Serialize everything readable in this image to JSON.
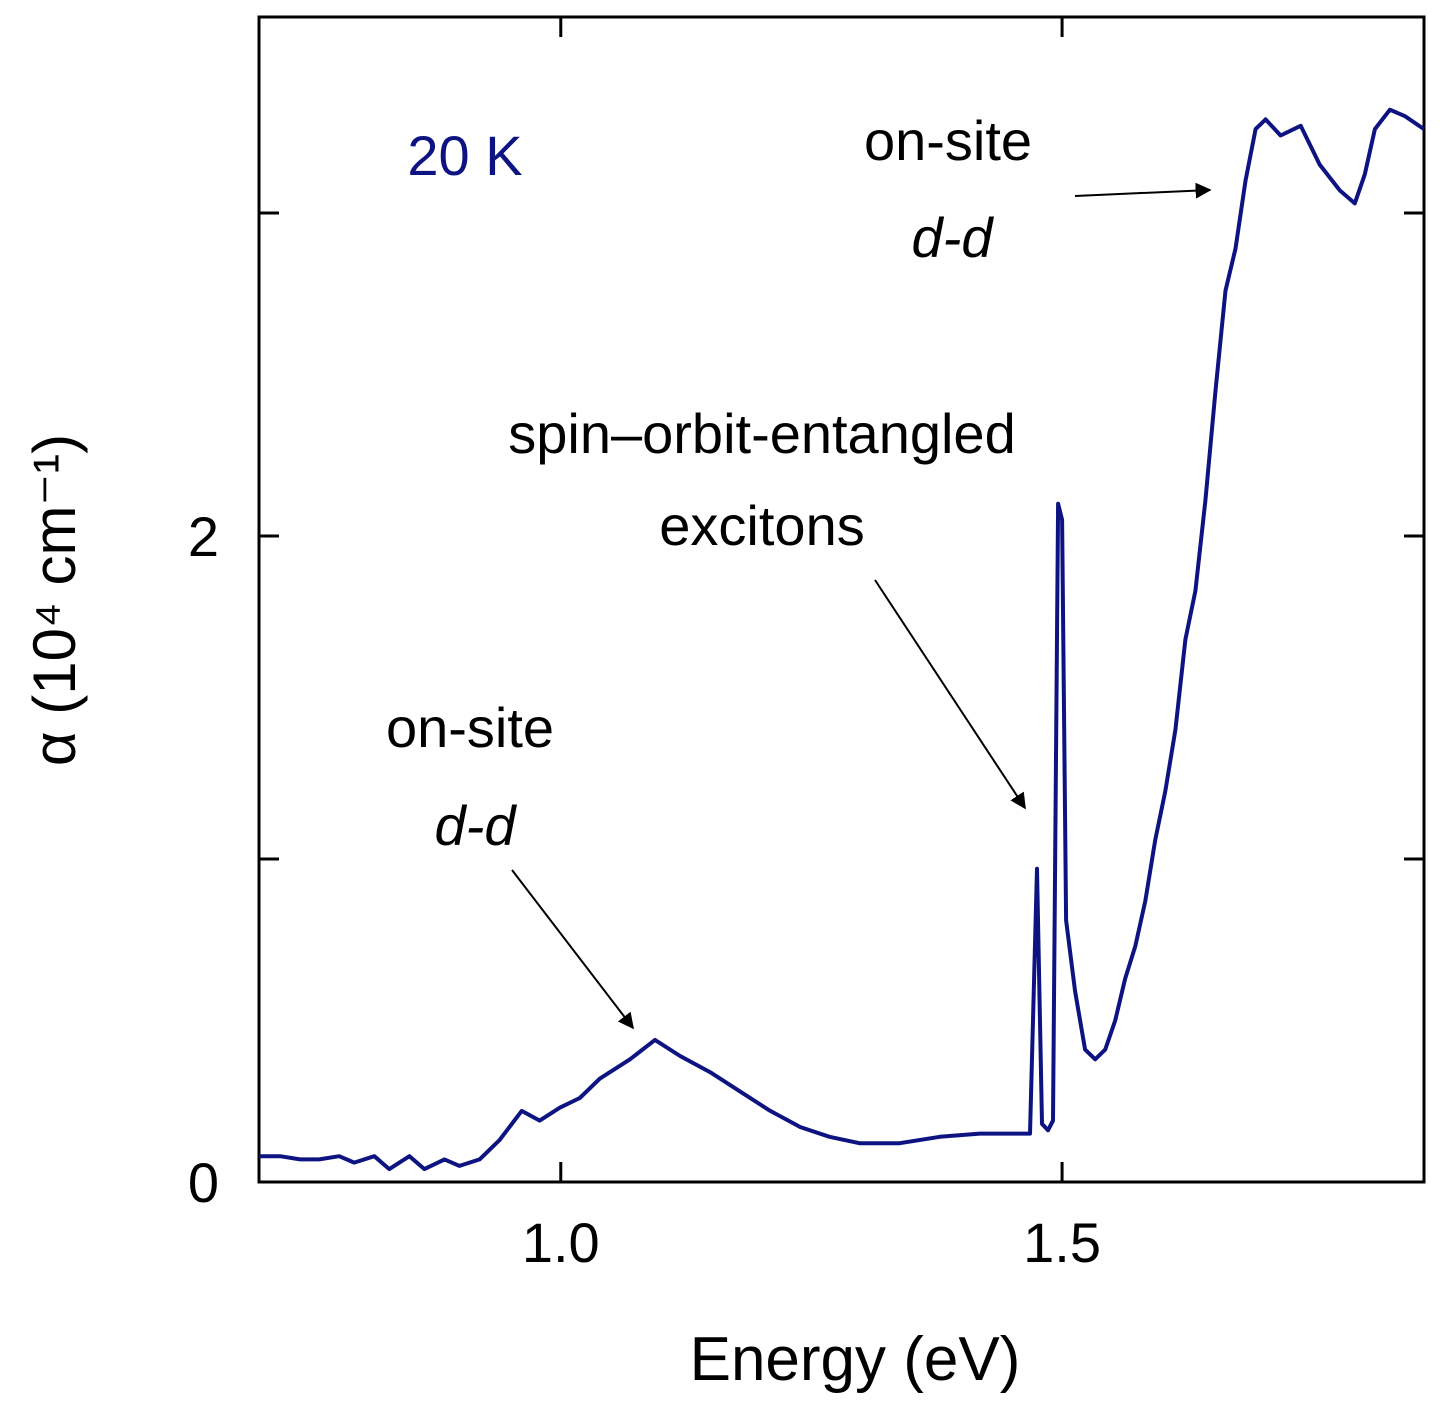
{
  "chart_data": {
    "type": "line",
    "xlabel": "Energy (eV)",
    "ylabel": "α (10⁴ cm⁻¹)",
    "xlim": [
      0.699,
      1.861
    ],
    "ylim": [
      0,
      3.607
    ],
    "xticks": [
      {
        "value": 1.0,
        "label": "1.0"
      },
      {
        "value": 1.5,
        "label": "1.5"
      }
    ],
    "yticks": [
      0,
      2
    ],
    "yminorticks": [
      1,
      3
    ],
    "color": "#0d1380",
    "annotations": [
      "20 K",
      "on-site",
      "d-d",
      "spin–orbit-entangled",
      "excitons",
      "on-site",
      "d-d"
    ],
    "x": [
      0.699,
      0.72,
      0.74,
      0.759,
      0.779,
      0.794,
      0.814,
      0.829,
      0.849,
      0.864,
      0.884,
      0.899,
      0.919,
      0.939,
      0.961,
      0.979,
      0.999,
      1.019,
      1.039,
      1.069,
      1.094,
      1.119,
      1.149,
      1.179,
      1.209,
      1.239,
      1.268,
      1.298,
      1.338,
      1.378,
      1.418,
      1.458,
      1.468,
      1.475,
      1.48,
      1.486,
      1.491,
      1.496,
      1.5,
      1.504,
      1.513,
      1.523,
      1.533,
      1.543,
      1.553,
      1.563,
      1.573,
      1.583,
      1.593,
      1.603,
      1.613,
      1.623,
      1.633,
      1.643,
      1.653,
      1.663,
      1.673,
      1.683,
      1.693,
      1.703,
      1.718,
      1.738,
      1.757,
      1.777,
      1.792,
      1.802,
      1.812,
      1.827,
      1.842,
      1.861
    ],
    "values": [
      0.08,
      0.08,
      0.07,
      0.07,
      0.08,
      0.06,
      0.08,
      0.04,
      0.08,
      0.04,
      0.07,
      0.05,
      0.07,
      0.13,
      0.22,
      0.19,
      0.23,
      0.26,
      0.32,
      0.38,
      0.44,
      0.39,
      0.34,
      0.28,
      0.22,
      0.17,
      0.14,
      0.12,
      0.12,
      0.14,
      0.15,
      0.15,
      0.15,
      0.97,
      0.18,
      0.16,
      0.19,
      2.1,
      2.05,
      0.81,
      0.59,
      0.41,
      0.38,
      0.41,
      0.5,
      0.63,
      0.73,
      0.87,
      1.06,
      1.21,
      1.4,
      1.68,
      1.83,
      2.11,
      2.45,
      2.76,
      2.89,
      3.1,
      3.26,
      3.29,
      3.24,
      3.27,
      3.15,
      3.07,
      3.03,
      3.12,
      3.26,
      3.32,
      3.3,
      3.26
    ]
  }
}
